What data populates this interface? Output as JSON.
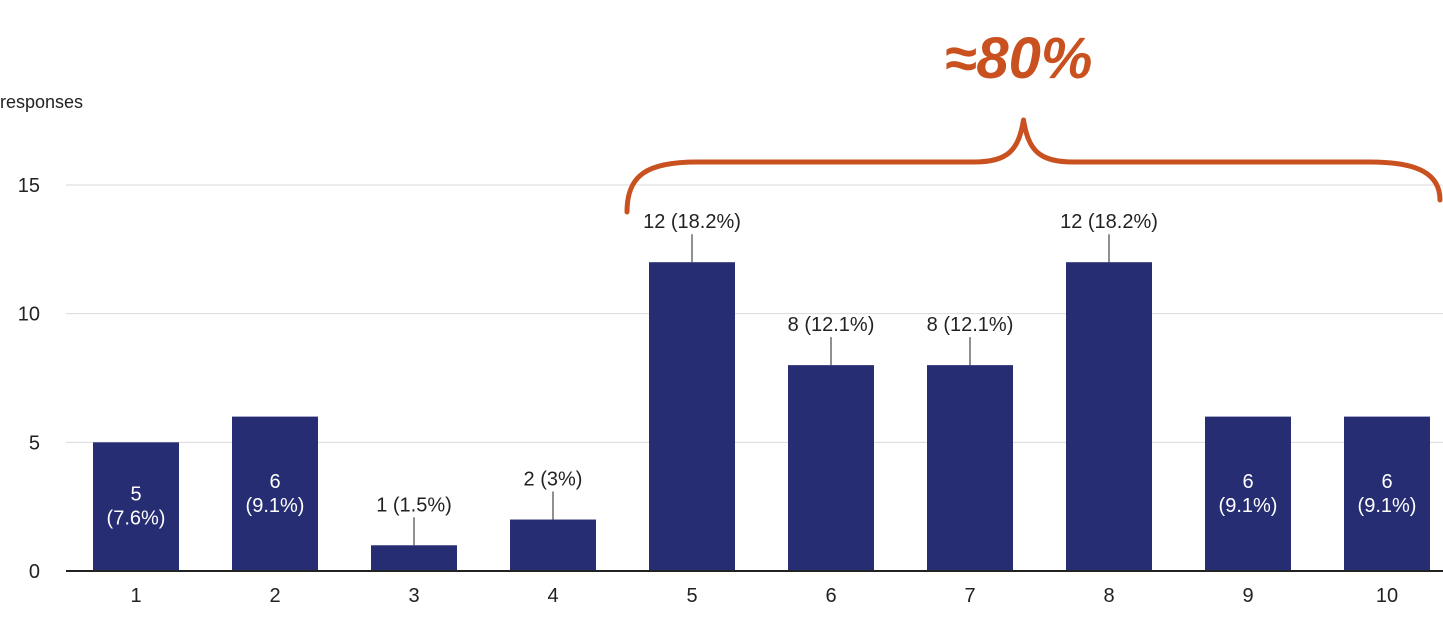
{
  "chart_data": {
    "type": "bar",
    "categories": [
      "1",
      "2",
      "3",
      "4",
      "5",
      "6",
      "7",
      "8",
      "9",
      "10"
    ],
    "values": [
      5,
      6,
      1,
      2,
      12,
      8,
      8,
      12,
      6,
      6
    ],
    "data_labels": [
      [
        "5",
        "(7.6%)"
      ],
      [
        "6",
        "(9.1%)"
      ],
      [
        "1 (1.5%)"
      ],
      [
        "2 (3%)"
      ],
      [
        "12 (18.2%)"
      ],
      [
        "8 (12.1%)"
      ],
      [
        "8 (12.1%)"
      ],
      [
        "12 (18.2%)"
      ],
      [
        "6",
        "(9.1%)"
      ],
      [
        "6",
        "(9.1%)"
      ]
    ],
    "ylabel": "responses",
    "ylim": [
      0,
      15
    ],
    "yticks": [
      0,
      5,
      10,
      15
    ],
    "grid": true,
    "colors": {
      "bar": "#262d73",
      "grid": "#d9d9d9",
      "axis": "#222222",
      "text": "#222222",
      "annotation": "#c8511f"
    },
    "annotations": [
      {
        "text": "≈80%",
        "type": "brace",
        "spans": [
          "5",
          "10"
        ]
      }
    ]
  }
}
